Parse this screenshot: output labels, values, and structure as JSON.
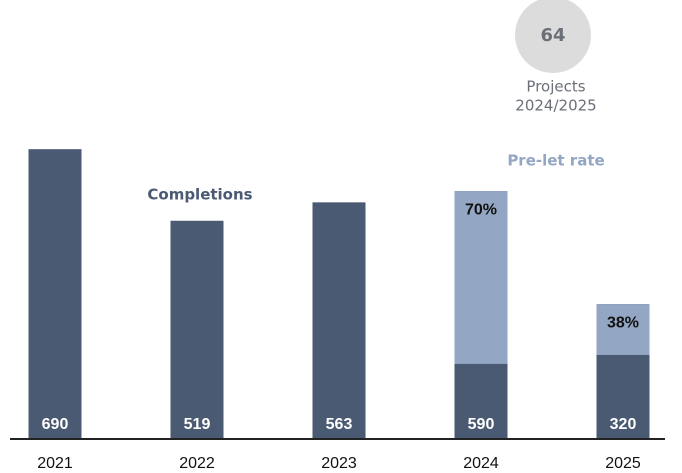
{
  "chart_data": {
    "type": "bar",
    "categories": [
      "2021",
      "2022",
      "2023",
      "2024",
      "2025"
    ],
    "series": [
      {
        "name": "Completions",
        "color": "#4a5a72",
        "values": [
          690,
          519,
          563,
          590,
          320
        ]
      },
      {
        "name": "Pre-let rate",
        "color": "#93a6c4",
        "values": [
          null,
          null,
          null,
          70,
          38
        ],
        "value_labels": [
          null,
          null,
          null,
          "70%",
          "38%"
        ]
      }
    ],
    "ylim": [
      0,
      700
    ],
    "callout": {
      "value": 64,
      "lines": [
        "Projects",
        "2024/2025"
      ]
    }
  }
}
